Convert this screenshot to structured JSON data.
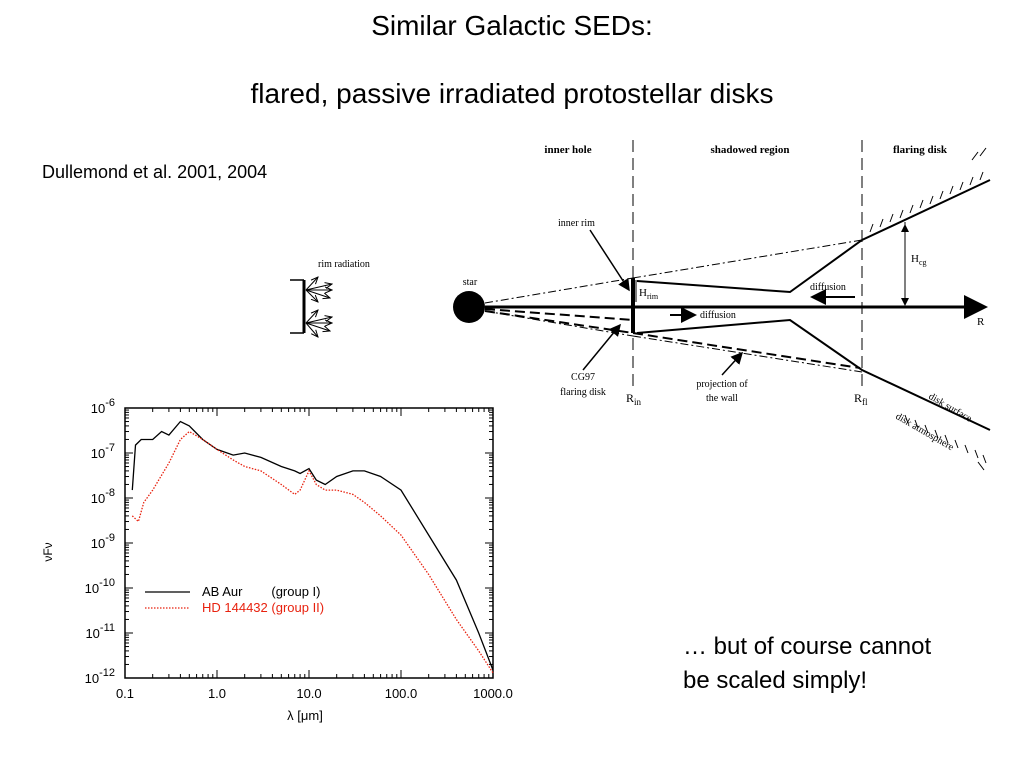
{
  "slide": {
    "title": "Similar Galactic SEDs:",
    "subtitle": "flared, passive irradiated protostellar  disks",
    "citation": "Dullemond et al. 2001, 2004",
    "closing_line1": "… but of course cannot",
    "closing_line2": "be scaled simply!"
  },
  "diagram": {
    "regions": [
      "inner hole",
      "shadowed region",
      "flaring disk"
    ],
    "star_label": "star",
    "rim_radiation_label": "rim radiation",
    "inner_rim_label": "inner rim",
    "h_rim_label": "H",
    "h_rim_sub": "rim",
    "h_cg_label": "H",
    "h_cg_sub": "cg",
    "diffusion_label": "diffusion",
    "r_label": "R",
    "r_in_label": "R",
    "r_in_sub": "in",
    "r_fl_label": "R",
    "r_fl_sub": "fl",
    "cg97_label_1": "CG97",
    "cg97_label_2": "flaring disk",
    "projection_label_1": "projection of",
    "projection_label_2": "the wall",
    "disk_surface_label": "disk surface",
    "disk_atmosphere_label": "disk atmosphere"
  },
  "chart_data": {
    "type": "line",
    "xlabel": "λ [μm]",
    "ylabel": "νFν",
    "xscale": "log",
    "yscale": "log",
    "xlim": [
      0.1,
      1000
    ],
    "ylim": [
      1e-12,
      1e-06
    ],
    "x_ticks": [
      "0.1",
      "1.0",
      "10.0",
      "100.0",
      "1000.0"
    ],
    "y_ticks": [
      {
        "base": "10",
        "exp": "-6"
      },
      {
        "base": "10",
        "exp": "-7"
      },
      {
        "base": "10",
        "exp": "-8"
      },
      {
        "base": "10",
        "exp": "-9"
      },
      {
        "base": "10",
        "exp": "-10"
      },
      {
        "base": "10",
        "exp": "-11"
      },
      {
        "base": "10",
        "exp": "-12"
      }
    ],
    "legend": "upper-left, inside lower left region",
    "series": [
      {
        "name": "AB Aur        (group I)",
        "color": "#000000",
        "style": "solid",
        "points": [
          [
            0.12,
            1.5e-08
          ],
          [
            0.13,
            1.5e-07
          ],
          [
            0.15,
            2e-07
          ],
          [
            0.2,
            2e-07
          ],
          [
            0.25,
            3e-07
          ],
          [
            0.3,
            2.5e-07
          ],
          [
            0.4,
            5e-07
          ],
          [
            0.5,
            4e-07
          ],
          [
            0.7,
            2e-07
          ],
          [
            1.0,
            1.2e-07
          ],
          [
            1.5,
            9e-08
          ],
          [
            2.0,
            1e-07
          ],
          [
            3.0,
            8e-08
          ],
          [
            5.0,
            5e-08
          ],
          [
            7.0,
            4e-08
          ],
          [
            8.0,
            3.5e-08
          ],
          [
            10,
            4.5e-08
          ],
          [
            12,
            2.5e-08
          ],
          [
            15,
            2e-08
          ],
          [
            20,
            3e-08
          ],
          [
            30,
            4e-08
          ],
          [
            40,
            4e-08
          ],
          [
            60,
            3e-08
          ],
          [
            100,
            1.5e-08
          ],
          [
            200,
            1.5e-09
          ],
          [
            400,
            1.5e-10
          ],
          [
            700,
            1e-11
          ],
          [
            1000,
            1.5e-12
          ]
        ]
      },
      {
        "name": "HD 144432 (group II)",
        "color": "#e8220f",
        "style": "dotted",
        "points": [
          [
            0.12,
            4e-09
          ],
          [
            0.14,
            3e-09
          ],
          [
            0.16,
            8e-09
          ],
          [
            0.2,
            1.5e-08
          ],
          [
            0.3,
            6e-08
          ],
          [
            0.4,
            2e-07
          ],
          [
            0.5,
            3e-07
          ],
          [
            0.7,
            2e-07
          ],
          [
            1.0,
            1.2e-07
          ],
          [
            1.5,
            7e-08
          ],
          [
            2.0,
            5e-08
          ],
          [
            3.0,
            4e-08
          ],
          [
            5.0,
            2e-08
          ],
          [
            7.0,
            1.2e-08
          ],
          [
            8.0,
            1.5e-08
          ],
          [
            10,
            4e-08
          ],
          [
            12,
            2e-08
          ],
          [
            15,
            1.5e-08
          ],
          [
            20,
            1.5e-08
          ],
          [
            30,
            1.2e-08
          ],
          [
            40,
            8e-09
          ],
          [
            60,
            4e-09
          ],
          [
            100,
            1.5e-09
          ],
          [
            200,
            2e-10
          ],
          [
            400,
            2e-11
          ],
          [
            700,
            4e-12
          ],
          [
            1000,
            1.3e-12
          ]
        ]
      }
    ]
  }
}
